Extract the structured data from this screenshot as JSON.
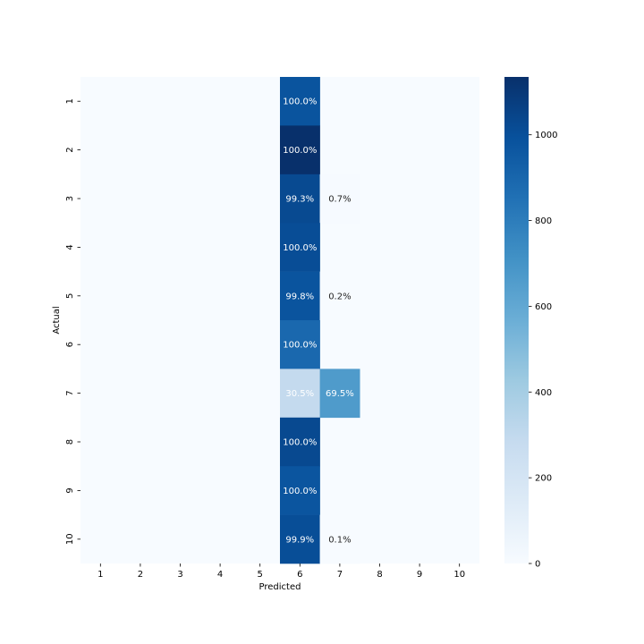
{
  "chart_data": {
    "type": "heatmap",
    "xlabel": "Predicted",
    "ylabel": "Actual",
    "x_categories": [
      "1",
      "2",
      "3",
      "4",
      "5",
      "6",
      "7",
      "8",
      "9",
      "10"
    ],
    "y_categories": [
      "1",
      "2",
      "3",
      "4",
      "5",
      "6",
      "7",
      "8",
      "9",
      "10"
    ],
    "colormap": "Blues",
    "colorbar": {
      "min": 0,
      "max": 1135,
      "ticks": [
        0,
        200,
        400,
        600,
        800,
        1000
      ]
    },
    "cells": [
      {
        "actual": "1",
        "predicted": "6",
        "count": 980,
        "label": "100.0%"
      },
      {
        "actual": "2",
        "predicted": "6",
        "count": 1135,
        "label": "100.0%"
      },
      {
        "actual": "3",
        "predicted": "6",
        "count": 1025,
        "label": "99.3%"
      },
      {
        "actual": "3",
        "predicted": "7",
        "count": 7,
        "label": "0.7%"
      },
      {
        "actual": "4",
        "predicted": "6",
        "count": 1010,
        "label": "100.0%"
      },
      {
        "actual": "5",
        "predicted": "6",
        "count": 980,
        "label": "99.8%"
      },
      {
        "actual": "5",
        "predicted": "7",
        "count": 2,
        "label": "0.2%"
      },
      {
        "actual": "6",
        "predicted": "6",
        "count": 892,
        "label": "100.0%"
      },
      {
        "actual": "7",
        "predicted": "6",
        "count": 292,
        "label": "30.5%"
      },
      {
        "actual": "7",
        "predicted": "7",
        "count": 666,
        "label": "69.5%"
      },
      {
        "actual": "8",
        "predicted": "6",
        "count": 1028,
        "label": "100.0%"
      },
      {
        "actual": "9",
        "predicted": "6",
        "count": 974,
        "label": "100.0%"
      },
      {
        "actual": "10",
        "predicted": "6",
        "count": 1008,
        "label": "99.9%"
      },
      {
        "actual": "10",
        "predicted": "7",
        "count": 1,
        "label": "0.1%"
      }
    ]
  }
}
